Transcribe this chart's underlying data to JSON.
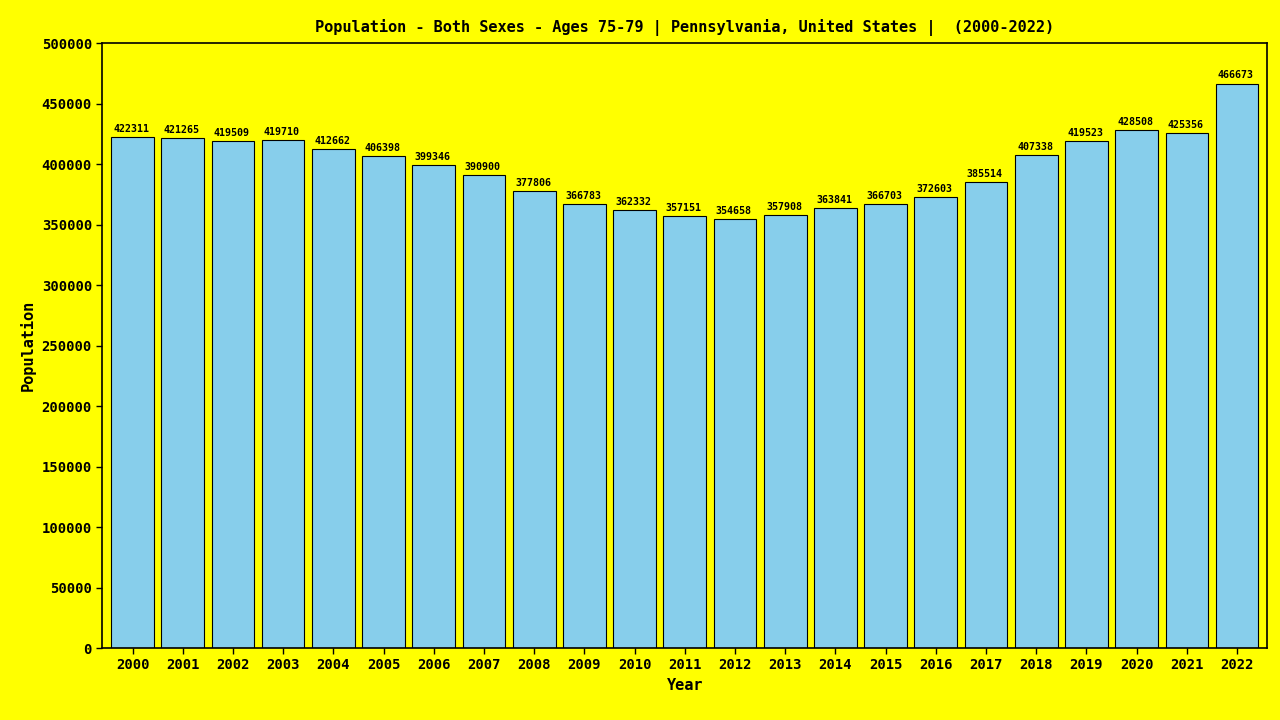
{
  "title": "Population - Both Sexes - Ages 75-79 | Pennsylvania, United States |  (2000-2022)",
  "xlabel": "Year",
  "ylabel": "Population",
  "background_color": "#ffff00",
  "bar_color": "#87ceeb",
  "bar_edge_color": "#000000",
  "years": [
    2000,
    2001,
    2002,
    2003,
    2004,
    2005,
    2006,
    2007,
    2008,
    2009,
    2010,
    2011,
    2012,
    2013,
    2014,
    2015,
    2016,
    2017,
    2018,
    2019,
    2020,
    2021,
    2022
  ],
  "values": [
    422311,
    421265,
    419509,
    419710,
    412662,
    406398,
    399346,
    390900,
    377806,
    366783,
    362332,
    357151,
    354658,
    357908,
    363841,
    366703,
    372603,
    385514,
    407338,
    419523,
    428508,
    425356,
    466673
  ],
  "ylim": [
    0,
    500000
  ],
  "yticks": [
    0,
    50000,
    100000,
    150000,
    200000,
    250000,
    300000,
    350000,
    400000,
    450000,
    500000
  ],
  "title_fontsize": 11,
  "axis_label_fontsize": 11,
  "tick_fontsize": 10,
  "bar_label_fontsize": 7.2
}
